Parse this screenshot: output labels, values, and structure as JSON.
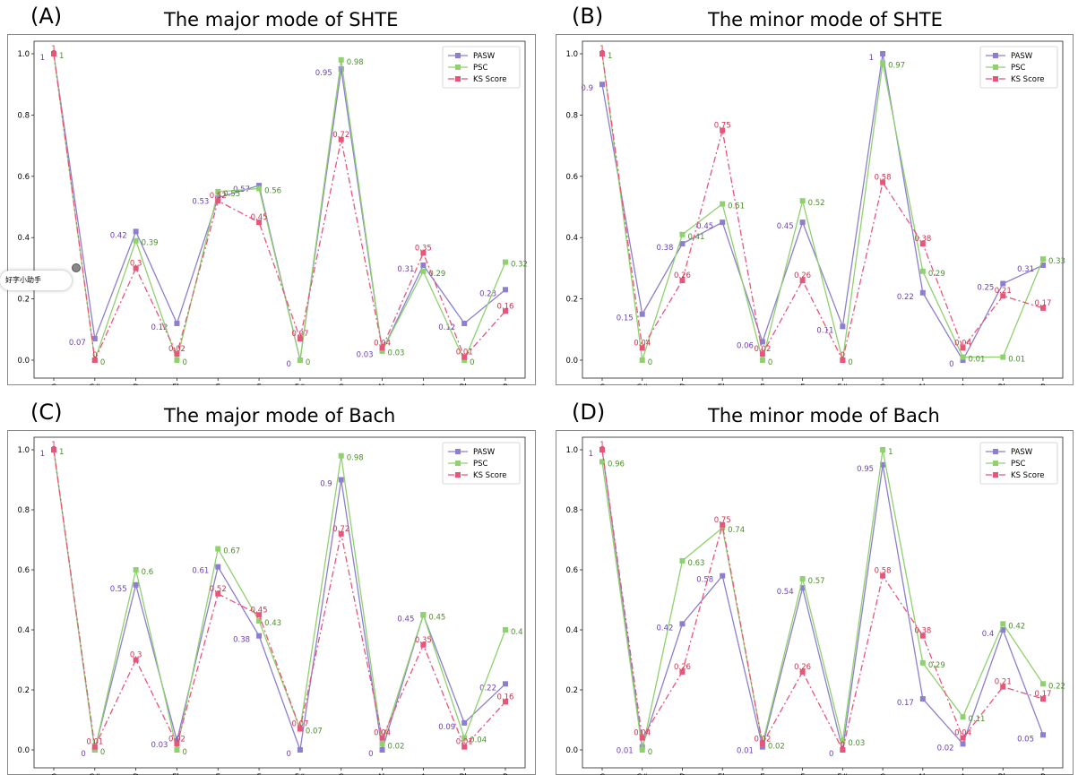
{
  "categories": [
    "C",
    "C#",
    "D",
    "Eb",
    "E",
    "F",
    "F#",
    "G",
    "Ab",
    "A",
    "Bb",
    "B"
  ],
  "legend": [
    "PASW",
    "PSC",
    "KS Score"
  ],
  "colors": {
    "PASW": "#8c7fcf",
    "PSC": "#8fd16e",
    "KS Score": "#e8557a"
  },
  "overlay_text": "好字小助手",
  "chart_data": [
    {
      "panel": "(A)",
      "title": "The major mode of SHTE",
      "type": "line",
      "categories": [
        "C",
        "C#",
        "D",
        "Eb",
        "E",
        "F",
        "F#",
        "G",
        "Ab",
        "A",
        "Bb",
        "B"
      ],
      "ylim": [
        0,
        1.0
      ],
      "yticks": [
        "0.0",
        "0.2",
        "0.4",
        "0.6",
        "0.8",
        "1.0"
      ],
      "legend_position": "top-right",
      "series": [
        {
          "name": "PASW",
          "values": [
            1.0,
            0.07,
            0.42,
            0.12,
            0.53,
            0.57,
            0.0,
            0.95,
            0.03,
            0.31,
            0.12,
            0.23
          ]
        },
        {
          "name": "PSC",
          "values": [
            1.0,
            0.0,
            0.39,
            0.0,
            0.55,
            0.56,
            0.0,
            0.98,
            0.03,
            0.29,
            0.0,
            0.32
          ]
        },
        {
          "name": "KS Score",
          "values": [
            1.0,
            0.0,
            0.3,
            0.02,
            0.52,
            0.45,
            0.07,
            0.72,
            0.04,
            0.35,
            0.01,
            0.16
          ]
        }
      ]
    },
    {
      "panel": "(B)",
      "title": "The minor mode of SHTE",
      "type": "line",
      "categories": [
        "C",
        "C#",
        "D",
        "Eb",
        "E",
        "F",
        "F#",
        "G",
        "Ab",
        "A",
        "Bb",
        "B"
      ],
      "ylim": [
        0,
        1.0
      ],
      "yticks": [
        "0.0",
        "0.2",
        "0.4",
        "0.6",
        "0.8",
        "1.0"
      ],
      "legend_position": "top-right",
      "series": [
        {
          "name": "PASW",
          "values": [
            0.9,
            0.15,
            0.38,
            0.45,
            0.06,
            0.45,
            0.11,
            1.0,
            0.22,
            0.0,
            0.25,
            0.31
          ]
        },
        {
          "name": "PSC",
          "values": [
            1.0,
            0.0,
            0.41,
            0.51,
            0.0,
            0.52,
            0.0,
            0.97,
            0.29,
            0.01,
            0.01,
            0.33
          ]
        },
        {
          "name": "KS Score",
          "values": [
            1.0,
            0.04,
            0.26,
            0.75,
            0.02,
            0.26,
            0.0,
            0.58,
            0.38,
            0.04,
            0.21,
            0.17
          ]
        }
      ]
    },
    {
      "panel": "(C)",
      "title": "The major mode of Bach",
      "type": "line",
      "categories": [
        "C",
        "C#",
        "D",
        "Eb",
        "E",
        "F",
        "F#",
        "G",
        "Ab",
        "A",
        "Bb",
        "B"
      ],
      "ylim": [
        0,
        1.0
      ],
      "yticks": [
        "0.0",
        "0.2",
        "0.4",
        "0.6",
        "0.8",
        "1.0"
      ],
      "legend_position": "top-right",
      "series": [
        {
          "name": "PASW",
          "values": [
            1.0,
            0.0,
            0.55,
            0.03,
            0.61,
            0.38,
            0.0,
            0.9,
            0.0,
            0.45,
            0.09,
            0.22
          ]
        },
        {
          "name": "PSC",
          "values": [
            1.0,
            0.0,
            0.6,
            0.0,
            0.67,
            0.43,
            0.07,
            0.98,
            0.02,
            0.45,
            0.04,
            0.4
          ]
        },
        {
          "name": "KS Score",
          "values": [
            1.0,
            0.01,
            0.3,
            0.02,
            0.52,
            0.45,
            0.07,
            0.72,
            0.04,
            0.35,
            0.01,
            0.16
          ]
        }
      ]
    },
    {
      "panel": "(D)",
      "title": "The minor mode of Bach",
      "type": "line",
      "categories": [
        "C",
        "C#",
        "D",
        "Eb",
        "E",
        "F",
        "F#",
        "G",
        "Ab",
        "A",
        "Bb",
        "B"
      ],
      "ylim": [
        0,
        1.0
      ],
      "yticks": [
        "0.0",
        "0.2",
        "0.4",
        "0.6",
        "0.8",
        "1.0"
      ],
      "legend_position": "top-right",
      "series": [
        {
          "name": "PASW",
          "values": [
            1.0,
            0.01,
            0.42,
            0.58,
            0.01,
            0.54,
            0.0,
            0.95,
            0.17,
            0.02,
            0.4,
            0.05
          ]
        },
        {
          "name": "PSC",
          "values": [
            0.96,
            0.0,
            0.63,
            0.74,
            0.02,
            0.57,
            0.03,
            1.0,
            0.29,
            0.11,
            0.42,
            0.22
          ]
        },
        {
          "name": "KS Score",
          "values": [
            1.0,
            0.04,
            0.26,
            0.75,
            0.02,
            0.26,
            0.0,
            0.58,
            0.38,
            0.04,
            0.21,
            0.17
          ]
        }
      ]
    }
  ]
}
